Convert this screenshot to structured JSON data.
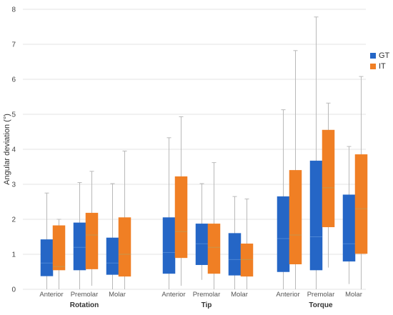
{
  "chart_data": {
    "type": "box",
    "ylabel": "Angular deviation (°)",
    "ylim": [
      0,
      8
    ],
    "yticks": [
      "0",
      "1",
      "2",
      "3",
      "4",
      "5",
      "6",
      "7",
      "8"
    ],
    "grid": true,
    "legend_position": "right",
    "series": [
      {
        "name": "GT",
        "color": "#2566c6"
      },
      {
        "name": "IT",
        "color": "#f07f24"
      }
    ],
    "groups": [
      {
        "label": "Rotation",
        "categories": [
          {
            "label": "Anterior",
            "GT": {
              "min": 0.0,
              "q1": 0.38,
              "median": 0.75,
              "q3": 1.42,
              "max": 2.75
            },
            "IT": {
              "min": 0.0,
              "q1": 0.55,
              "median": 0.65,
              "q3": 1.82,
              "max": 2.0
            }
          },
          {
            "label": "Premolar",
            "GT": {
              "min": 0.0,
              "q1": 0.55,
              "median": 1.2,
              "q3": 1.9,
              "max": 3.05
            },
            "IT": {
              "min": 0.1,
              "q1": 0.58,
              "median": 1.55,
              "q3": 2.18,
              "max": 3.37
            }
          },
          {
            "label": "Molar",
            "GT": {
              "min": 0.0,
              "q1": 0.42,
              "median": 0.75,
              "q3": 1.47,
              "max": 3.02
            },
            "IT": {
              "min": 0.0,
              "q1": 0.37,
              "median": 1.0,
              "q3": 2.05,
              "max": 3.95
            }
          }
        ]
      },
      {
        "label": "Tip",
        "categories": [
          {
            "label": "Anterior",
            "GT": {
              "min": 0.0,
              "q1": 0.45,
              "median": 1.05,
              "q3": 2.05,
              "max": 4.33
            },
            "IT": {
              "min": 0.1,
              "q1": 0.9,
              "median": 1.65,
              "q3": 3.22,
              "max": 4.93
            }
          },
          {
            "label": "Premolar",
            "GT": {
              "min": 0.27,
              "q1": 0.7,
              "median": 1.3,
              "q3": 1.87,
              "max": 3.02
            },
            "IT": {
              "min": 0.0,
              "q1": 0.45,
              "median": 1.2,
              "q3": 1.87,
              "max": 3.62
            }
          },
          {
            "label": "Molar",
            "GT": {
              "min": 0.0,
              "q1": 0.4,
              "median": 0.85,
              "q3": 1.6,
              "max": 2.65
            },
            "IT": {
              "min": 0.0,
              "q1": 0.37,
              "median": 0.85,
              "q3": 1.3,
              "max": 2.58
            }
          }
        ]
      },
      {
        "label": "Torque",
        "categories": [
          {
            "label": "Anterior",
            "GT": {
              "min": 0.0,
              "q1": 0.5,
              "median": 1.45,
              "q3": 2.65,
              "max": 5.13
            },
            "IT": {
              "min": 0.0,
              "q1": 0.72,
              "median": 1.55,
              "q3": 3.4,
              "max": 6.82
            }
          },
          {
            "label": "Premolar",
            "GT": {
              "min": 0.0,
              "q1": 0.55,
              "median": 1.5,
              "q3": 3.67,
              "max": 7.78
            },
            "IT": {
              "min": 0.62,
              "q1": 1.78,
              "median": 2.9,
              "q3": 4.55,
              "max": 5.32
            }
          },
          {
            "label": "Molar",
            "GT": {
              "min": 0.15,
              "q1": 0.8,
              "median": 1.3,
              "q3": 2.7,
              "max": 4.08
            },
            "IT": {
              "min": 0.0,
              "q1": 1.02,
              "median": 2.3,
              "q3": 3.85,
              "max": 6.08
            }
          }
        ]
      }
    ]
  }
}
